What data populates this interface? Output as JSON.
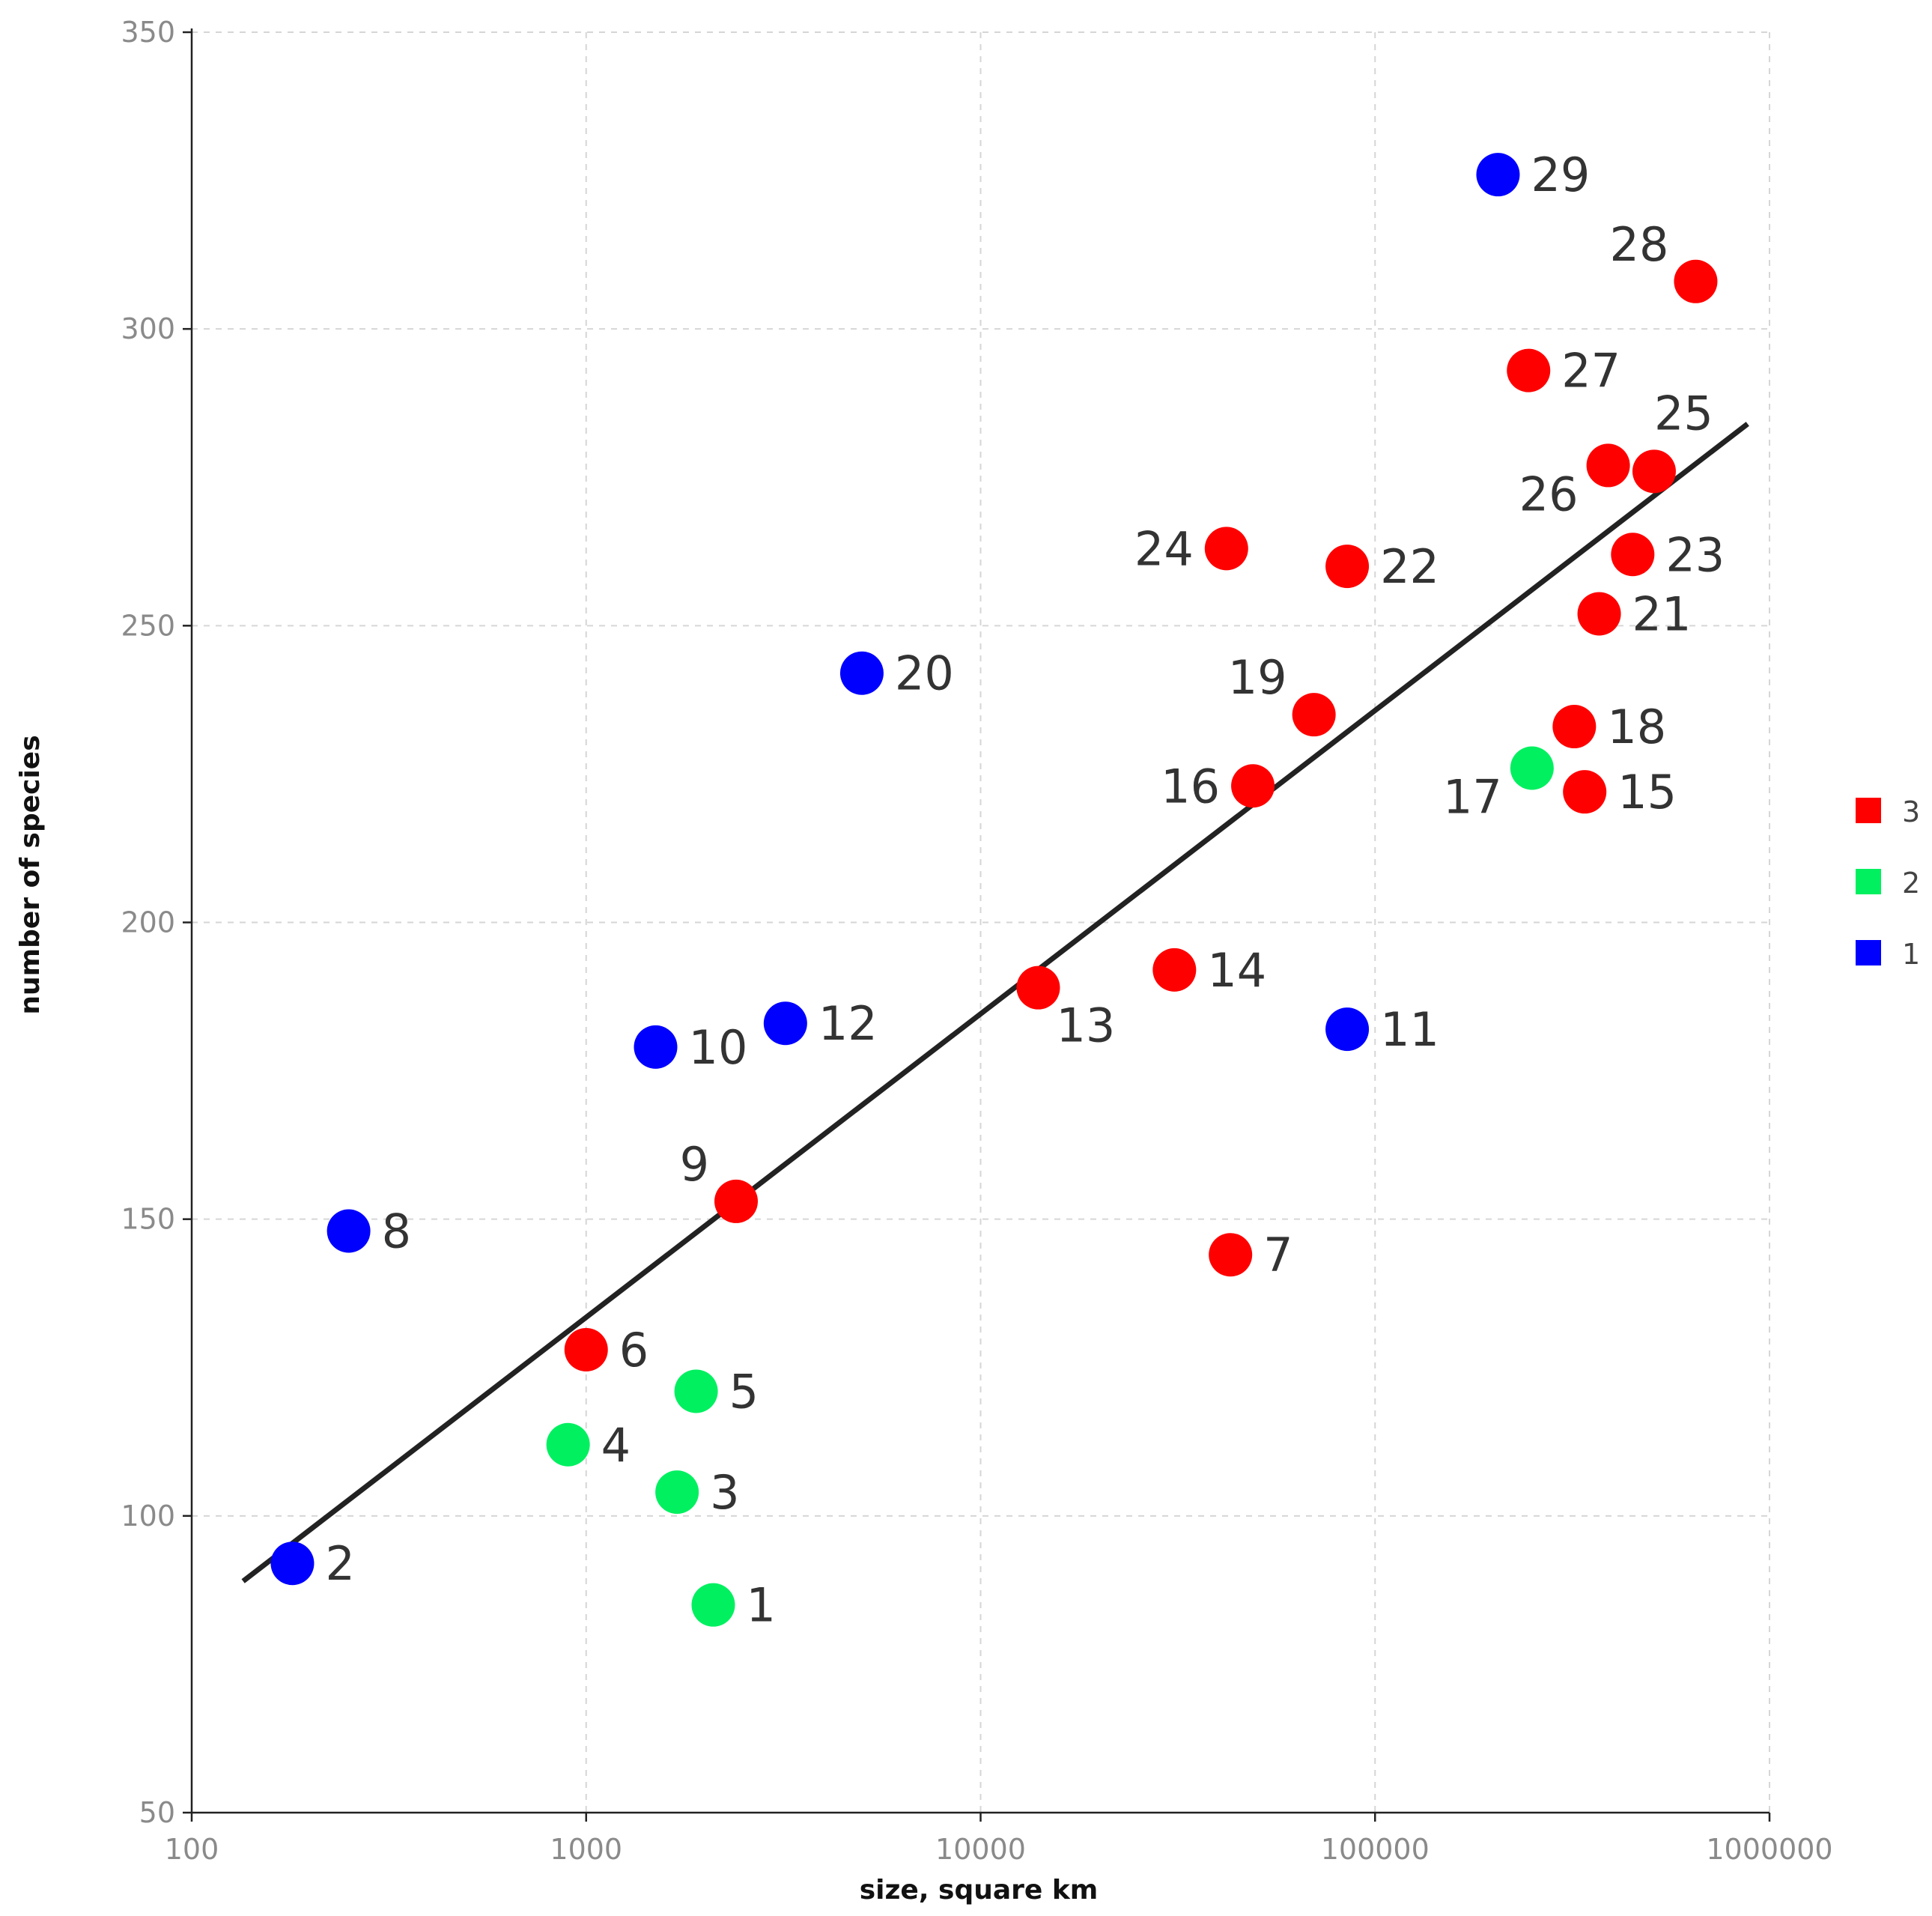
{
  "chart_data": {
    "type": "scatter",
    "title": "",
    "xlabel": "size, square km",
    "ylabel": "number of species",
    "xscale": "log",
    "xlim": [
      100,
      1000000
    ],
    "ylim": [
      50,
      350
    ],
    "xticks": [
      100,
      1000,
      10000,
      100000,
      1000000
    ],
    "xtick_labels": [
      "100",
      "1000",
      "10000",
      "100000",
      "1000000"
    ],
    "yticks": [
      50,
      100,
      150,
      200,
      250,
      300,
      350
    ],
    "ytick_labels": [
      "50",
      "100",
      "150",
      "200",
      "250",
      "300",
      "350"
    ],
    "grid": true,
    "colors": {
      "1": "#0000ff",
      "2": "#00f060",
      "3": "#ff0000"
    },
    "legend": {
      "position": "right",
      "entries": [
        {
          "label": "3",
          "group": "3"
        },
        {
          "label": "2",
          "group": "2"
        },
        {
          "label": "1",
          "group": "1"
        }
      ]
    },
    "points": [
      {
        "id": "1",
        "x": 2100,
        "y": 85,
        "group": "2",
        "label_pos": "right"
      },
      {
        "id": "2",
        "x": 180,
        "y": 92,
        "group": "1",
        "label_pos": "right"
      },
      {
        "id": "3",
        "x": 1700,
        "y": 104,
        "group": "2",
        "label_pos": "right"
      },
      {
        "id": "4",
        "x": 900,
        "y": 112,
        "group": "2",
        "label_pos": "right"
      },
      {
        "id": "5",
        "x": 1900,
        "y": 121,
        "group": "2",
        "label_pos": "right"
      },
      {
        "id": "6",
        "x": 1000,
        "y": 128,
        "group": "3",
        "label_pos": "right"
      },
      {
        "id": "7",
        "x": 43000,
        "y": 144,
        "group": "3",
        "label_pos": "right"
      },
      {
        "id": "8",
        "x": 250,
        "y": 148,
        "group": "1",
        "label_pos": "right"
      },
      {
        "id": "9",
        "x": 2400,
        "y": 153,
        "group": "3",
        "label_pos": "upper-left"
      },
      {
        "id": "10",
        "x": 1500,
        "y": 179,
        "group": "1",
        "label_pos": "right"
      },
      {
        "id": "11",
        "x": 85000,
        "y": 182,
        "group": "1",
        "label_pos": "right"
      },
      {
        "id": "12",
        "x": 3200,
        "y": 183,
        "group": "1",
        "label_pos": "right"
      },
      {
        "id": "13",
        "x": 14000,
        "y": 189,
        "group": "3",
        "label_pos": "lower-right"
      },
      {
        "id": "14",
        "x": 31000,
        "y": 192,
        "group": "3",
        "label_pos": "right"
      },
      {
        "id": "15",
        "x": 340000,
        "y": 222,
        "group": "3",
        "label_pos": "right"
      },
      {
        "id": "16",
        "x": 49000,
        "y": 223,
        "group": "3",
        "label_pos": "left"
      },
      {
        "id": "17",
        "x": 250000,
        "y": 226,
        "group": "2",
        "label_pos": "lower-left"
      },
      {
        "id": "18",
        "x": 320000,
        "y": 233,
        "group": "3",
        "label_pos": "right"
      },
      {
        "id": "19",
        "x": 70000,
        "y": 235,
        "group": "3",
        "label_pos": "upper-left"
      },
      {
        "id": "20",
        "x": 5000,
        "y": 242,
        "group": "1",
        "label_pos": "right"
      },
      {
        "id": "21",
        "x": 370000,
        "y": 252,
        "group": "3",
        "label_pos": "right"
      },
      {
        "id": "22",
        "x": 85000,
        "y": 260,
        "group": "3",
        "label_pos": "right"
      },
      {
        "id": "23",
        "x": 450000,
        "y": 262,
        "group": "3",
        "label_pos": "right"
      },
      {
        "id": "24",
        "x": 42000,
        "y": 263,
        "group": "3",
        "label_pos": "left"
      },
      {
        "id": "25",
        "x": 510000,
        "y": 276,
        "group": "3",
        "label_pos": "upper-right"
      },
      {
        "id": "26",
        "x": 390000,
        "y": 277,
        "group": "3",
        "label_pos": "lower-left"
      },
      {
        "id": "27",
        "x": 245000,
        "y": 293,
        "group": "3",
        "label_pos": "right"
      },
      {
        "id": "28",
        "x": 650000,
        "y": 308,
        "group": "3",
        "label_pos": "upper-left"
      },
      {
        "id": "29",
        "x": 205000,
        "y": 326,
        "group": "1",
        "label_pos": "right"
      }
    ],
    "trendline": {
      "x_start": 135,
      "y_start": 89,
      "x_end": 880000,
      "y_end": 284
    }
  }
}
